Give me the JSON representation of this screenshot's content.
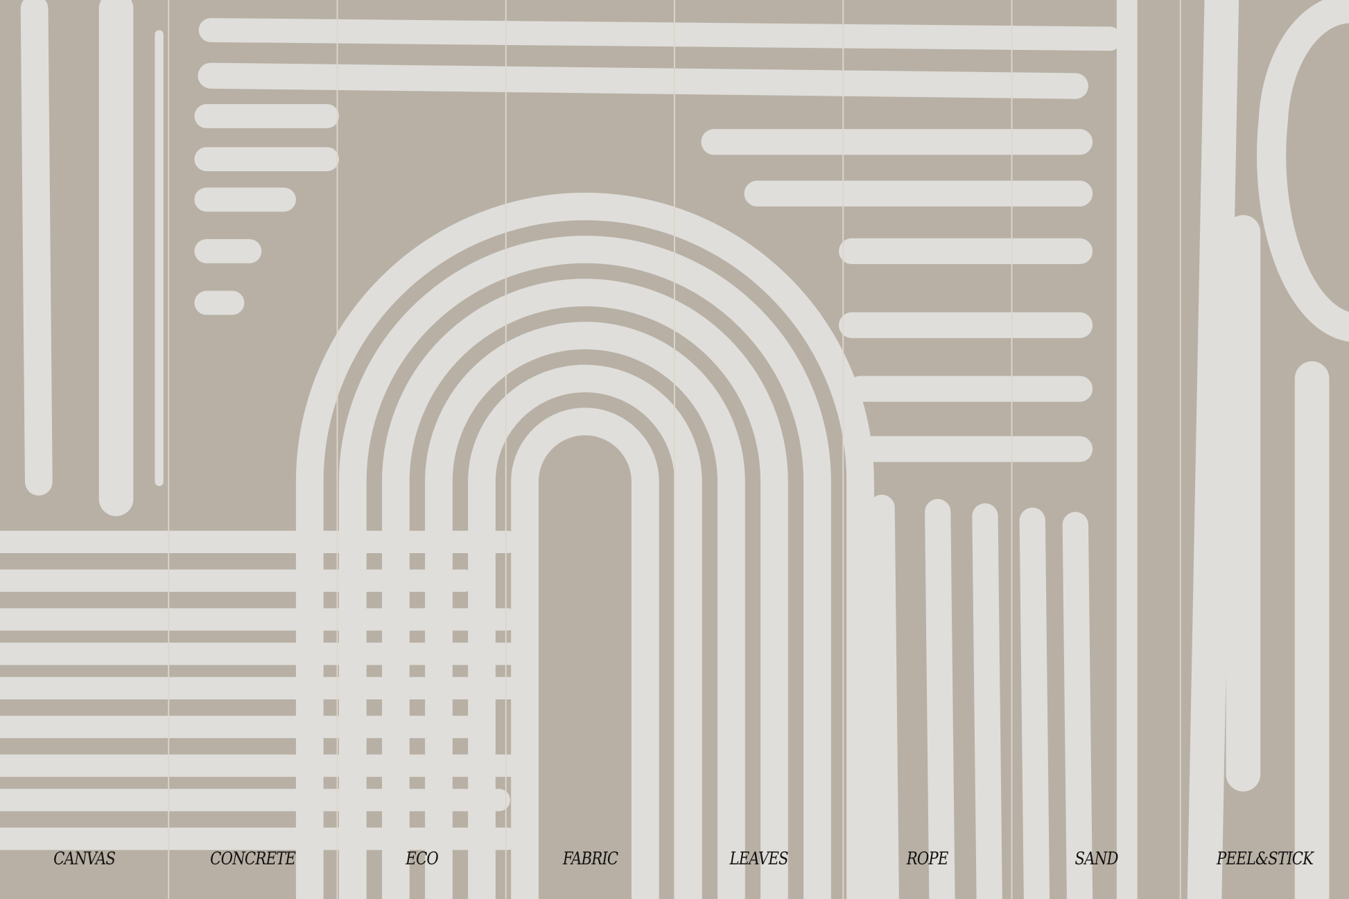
{
  "colors": {
    "background": "#b8b0a5",
    "stroke": "#e3e2df",
    "divider": "#ddd6cb",
    "label": "#111111"
  },
  "panels": [
    {
      "label": "CANVAS"
    },
    {
      "label": "CONCRETE"
    },
    {
      "label": "ECO"
    },
    {
      "label": "FABRIC"
    },
    {
      "label": "LEAVES"
    },
    {
      "label": "ROPE"
    },
    {
      "label": "SAND"
    },
    {
      "label": "PEEL&STICK"
    }
  ]
}
